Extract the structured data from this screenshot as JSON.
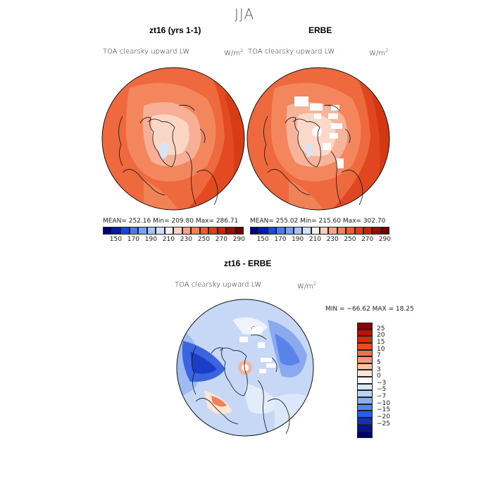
{
  "title": "JJA",
  "panels": [
    {
      "title": "zt16 (yrs 1-1)",
      "variable": "TOA clearsky upward LW",
      "units": "W/m",
      "units_exp": "2",
      "stats": "MEAN= 252.16   Min= 209.80    Max= 286.71"
    },
    {
      "title": "ERBE",
      "variable": "TOA clearsky upward LW",
      "units": "W/m",
      "units_exp": "2",
      "stats": "MEAN= 255.02   Min= 215.60    Max= 302.70"
    },
    {
      "title": "zt16 - ERBE",
      "variable": "TOA clearsky upward LW",
      "units": "W/m",
      "units_exp": "2",
      "stats": "MIN = −66.62  MAX =  18.25"
    }
  ],
  "colorbar_top": {
    "labels": [
      "150",
      "170",
      "190",
      "210",
      "230",
      "250",
      "270",
      "290"
    ],
    "colors": [
      "#00007a",
      "#0018b8",
      "#1848e0",
      "#4a78f0",
      "#7aa0f4",
      "#a6c4f8",
      "#cfe0fb",
      "#f6f1ea",
      "#f8d2bc",
      "#f4a484",
      "#f08058",
      "#e85c36",
      "#de3c18",
      "#c82408",
      "#9a0c00",
      "#6a0000"
    ]
  },
  "colorbar_diff": {
    "labels": [
      "25",
      "20",
      "15",
      "10",
      "7",
      "5",
      "3",
      "0",
      "−3",
      "−5",
      "−7",
      "−10",
      "−15",
      "−20",
      "−25"
    ],
    "colors": [
      "#8a0000",
      "#b81200",
      "#d82a08",
      "#ee4a1c",
      "#f47048",
      "#f89878",
      "#fcc2a4",
      "#fde6d6",
      "#ffffff",
      "#dbe8fb",
      "#bcd2f8",
      "#8aaef2",
      "#5884ec",
      "#2c5ee4",
      "#1030c4",
      "#00149a",
      "#00006a"
    ]
  }
}
